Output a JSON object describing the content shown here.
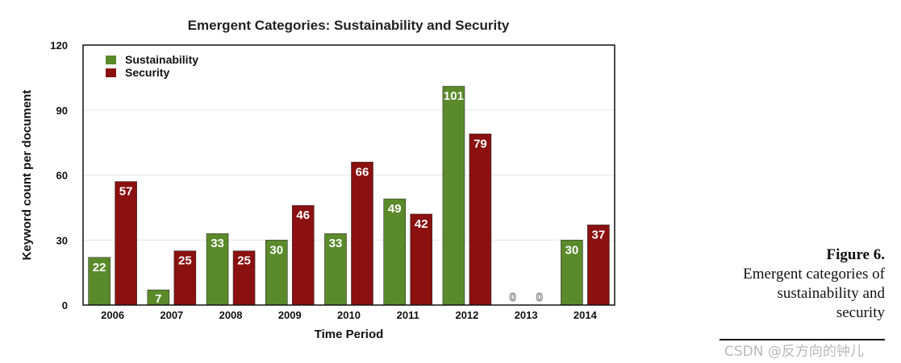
{
  "chart_data": {
    "type": "bar",
    "title": "Emergent Categories: Sustainability and Security",
    "xlabel": "Time Period",
    "ylabel": "Keyword count per document",
    "ylim": [
      0,
      120
    ],
    "yticks": [
      0,
      30,
      60,
      90,
      120
    ],
    "grid": true,
    "legend_position": "top-left",
    "categories": [
      "2006",
      "2007",
      "2008",
      "2009",
      "2010",
      "2011",
      "2012",
      "2013",
      "2014"
    ],
    "series": [
      {
        "name": "Sustainability",
        "color": "#5a8a2a",
        "values": [
          22,
          7,
          33,
          30,
          33,
          49,
          101,
          0,
          30
        ]
      },
      {
        "name": "Security",
        "color": "#8b1010",
        "values": [
          57,
          25,
          25,
          46,
          66,
          42,
          79,
          0,
          37
        ]
      }
    ]
  },
  "caption": {
    "figure": "Figure 6.",
    "lines": [
      "Emergent categories of",
      "sustainability and",
      "security"
    ]
  },
  "watermark": "CSDN @反方向的钟儿"
}
